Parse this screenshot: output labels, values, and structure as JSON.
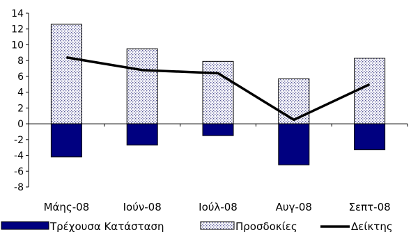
{
  "chart_data": {
    "type": "bar",
    "categories": [
      "Μάης-08",
      "Ιούν-08",
      "Ιούλ-08",
      "Αυγ-08",
      "Σεπτ-08"
    ],
    "series": [
      {
        "name": "Τρέχουσα Κατάσταση",
        "type": "bar",
        "values": [
          -4.2,
          -2.7,
          -1.5,
          -5.2,
          -3.3
        ],
        "color": "#000080"
      },
      {
        "name": "Προσδοκίες",
        "type": "bar",
        "values": [
          12.6,
          9.5,
          7.9,
          5.7,
          8.3
        ],
        "color": "#e8eaf6",
        "pattern": "dotted"
      },
      {
        "name": "Δείκτης",
        "type": "line",
        "values": [
          8.4,
          6.8,
          6.4,
          0.5,
          5.0
        ],
        "color": "#000000"
      }
    ],
    "y_ticks": [
      "14",
      "12",
      "10",
      "8",
      "6",
      "4",
      "2",
      "0",
      "-2",
      "-4",
      "-6",
      "-8"
    ],
    "ylim": [
      -8,
      14
    ],
    "legend_position": "bottom"
  }
}
